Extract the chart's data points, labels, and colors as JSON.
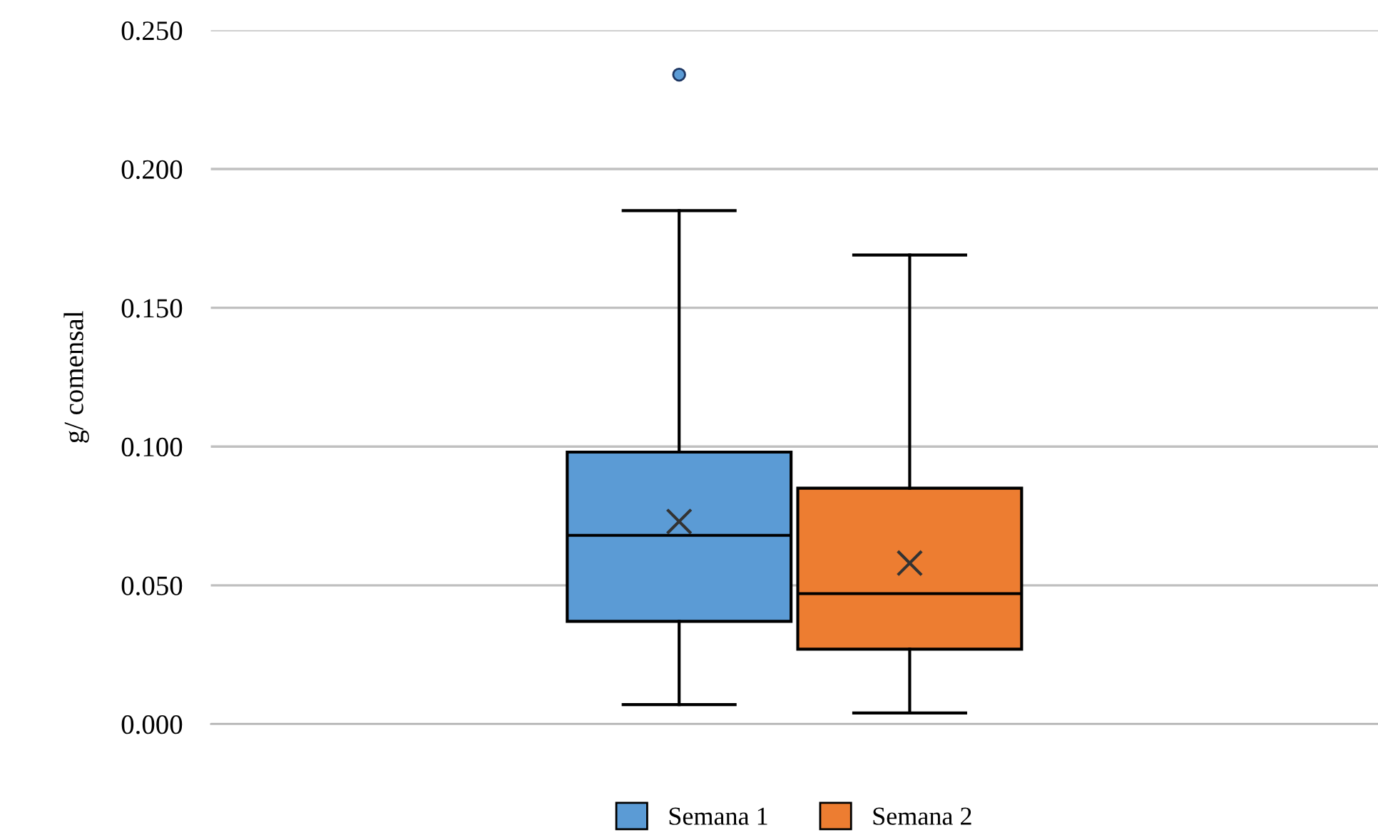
{
  "chart_data": {
    "type": "box",
    "ylabel": "g/ comensal",
    "categories": [
      null
    ],
    "series": [
      {
        "name": "Semana 1",
        "color": "#5b9bd5",
        "boxes": [
          {
            "low": 0.007,
            "q1": 0.037,
            "median": 0.068,
            "q3": 0.098,
            "high": 0.185,
            "mean": 0.073,
            "outliers": [
              0.234
            ]
          }
        ]
      },
      {
        "name": "Semana 2",
        "color": "#ed7d31",
        "boxes": [
          {
            "low": 0.004,
            "q1": 0.027,
            "median": 0.047,
            "q3": 0.085,
            "high": 0.169,
            "mean": 0.058
          }
        ]
      }
    ],
    "ylim": [
      0,
      0.25
    ],
    "yticks": [
      {
        "value": 0,
        "label": "0.000"
      },
      {
        "value": 0.05,
        "label": "0.050"
      },
      {
        "value": 0.1,
        "label": "0.100"
      },
      {
        "value": 0.15,
        "label": "0.150"
      },
      {
        "value": 0.2,
        "label": "0.200"
      },
      {
        "value": 0.25,
        "label": "0.250"
      }
    ],
    "grid": "y",
    "legend": "bottom"
  }
}
